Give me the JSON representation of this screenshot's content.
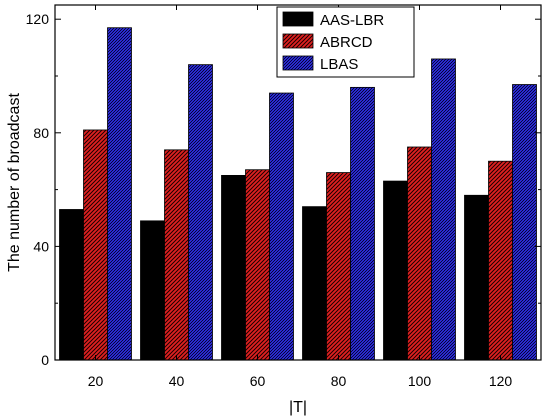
{
  "chart_data": {
    "type": "bar",
    "categories": [
      "20",
      "40",
      "60",
      "80",
      "100",
      "120"
    ],
    "series": [
      {
        "name": "AAS-LBR",
        "values": [
          53,
          49,
          65,
          54,
          63,
          58
        ],
        "color": "#000000",
        "pattern": "solid"
      },
      {
        "name": "ABRCD",
        "values": [
          81,
          74,
          67,
          66,
          75,
          70
        ],
        "color": "#e02020",
        "pattern": "diagonal-hatch"
      },
      {
        "name": "LBAS",
        "values": [
          117,
          104,
          94,
          96,
          106,
          97
        ],
        "color": "#1a1ab4",
        "pattern": "crosshatch"
      }
    ],
    "title": "",
    "xlabel": "|T|",
    "ylabel": "The number of broadcast",
    "ylim": [
      0,
      125
    ],
    "yticks": [
      0,
      40,
      80,
      120
    ],
    "grid": false,
    "legend_position": "top-center"
  }
}
